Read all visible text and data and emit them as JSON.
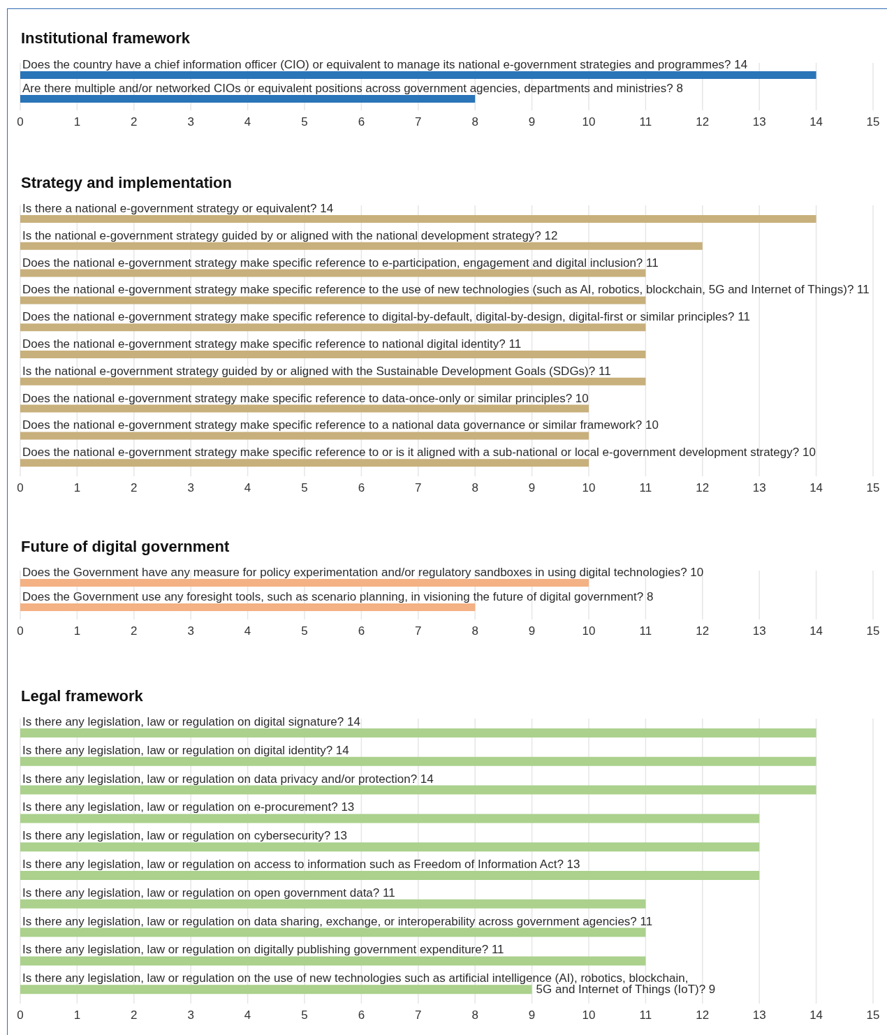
{
  "chart_data": [
    {
      "type": "bar",
      "orientation": "horizontal",
      "title": "Institutional framework",
      "categories": [
        "Does the country have a chief information officer (CIO) or equivalent to manage its national e-government strategies and programmes? 14",
        "Are there multiple and/or networked CIOs or equivalent positions across government agencies, departments and ministries? 8"
      ],
      "values": [
        14,
        8
      ],
      "color": "#2a74b8",
      "xlim": [
        0,
        15
      ],
      "xticks": [
        0,
        1,
        2,
        3,
        4,
        5,
        6,
        7,
        8,
        9,
        10,
        11,
        12,
        13,
        14,
        15
      ],
      "grid": "x"
    },
    {
      "type": "bar",
      "orientation": "horizontal",
      "title": "Strategy and implementation",
      "categories": [
        "Is there a national e-government strategy or equivalent? 14",
        "Is the national e-government strategy guided by or aligned with the national development strategy? 12",
        "Does the national e-government strategy make specific reference to e-participation, engagement and digital inclusion? 11",
        "Does the national e-government strategy make specific reference to the use of new technologies (such as AI, robotics, blockchain, 5G and Internet of Things)? 11",
        "Does the national e-government strategy make specific reference to digital-by-default, digital-by-design, digital-first or similar principles? 11",
        "Does the national e-government strategy make specific reference to national digital identity? 11",
        "Is the national e-government strategy guided by or aligned with the Sustainable Development Goals (SDGs)? 11",
        "Does the national e-government strategy make specific reference to data-once-only or similar principles? 10",
        "Does the national e-government strategy make specific reference to a national data governance or similar framework? 10",
        "Does the national e-government strategy make specific reference to or is it aligned with a sub-national or local e-government development strategy? 10"
      ],
      "values": [
        14,
        12,
        11,
        11,
        11,
        11,
        11,
        10,
        10,
        10
      ],
      "color": "#c8b07c",
      "xlim": [
        0,
        15
      ],
      "xticks": [
        0,
        1,
        2,
        3,
        4,
        5,
        6,
        7,
        8,
        9,
        10,
        11,
        12,
        13,
        14,
        15
      ],
      "grid": "x"
    },
    {
      "type": "bar",
      "orientation": "horizontal",
      "title": "Future of digital government",
      "categories": [
        "Does the Government have any measure for policy experimentation and/or regulatory sandboxes in using digital technologies? 10",
        "Does the Government use any foresight tools, such as scenario planning, in visioning the future of digital government? 8"
      ],
      "values": [
        10,
        8
      ],
      "color": "#f4b183",
      "xlim": [
        0,
        15
      ],
      "xticks": [
        0,
        1,
        2,
        3,
        4,
        5,
        6,
        7,
        8,
        9,
        10,
        11,
        12,
        13,
        14,
        15
      ],
      "grid": "x"
    },
    {
      "type": "bar",
      "orientation": "horizontal",
      "title": "Legal framework",
      "categories": [
        "Is there any legislation, law or regulation on digital signature? 14",
        "Is there any legislation, law or regulation on digital identity? 14",
        "Is there any legislation, law or regulation on data privacy and/or protection? 14",
        "Is there any legislation, law or regulation on e-procurement? 13",
        "Is there any legislation, law or regulation on cybersecurity? 13",
        "Is there any legislation, law or regulation on access to information such as Freedom of Information Act? 13",
        "Is there any legislation, law or regulation on open government data? 11",
        "Is there any legislation, law or regulation on data sharing, exchange, or interoperability across government agencies? 11",
        "Is there any legislation, law or regulation on digitally publishing government expenditure? 11",
        "Is there any legislation, law or regulation on the use of new technologies such as artificial intelligence (AI), robotics, blockchain,\n5G and Internet of Things (IoT)? 9"
      ],
      "values": [
        14,
        14,
        14,
        13,
        13,
        13,
        11,
        11,
        11,
        9
      ],
      "color": "#abd18d",
      "xlim": [
        0,
        15
      ],
      "xticks": [
        0,
        1,
        2,
        3,
        4,
        5,
        6,
        7,
        8,
        9,
        10,
        11,
        12,
        13,
        14,
        15
      ],
      "grid": "x"
    }
  ]
}
